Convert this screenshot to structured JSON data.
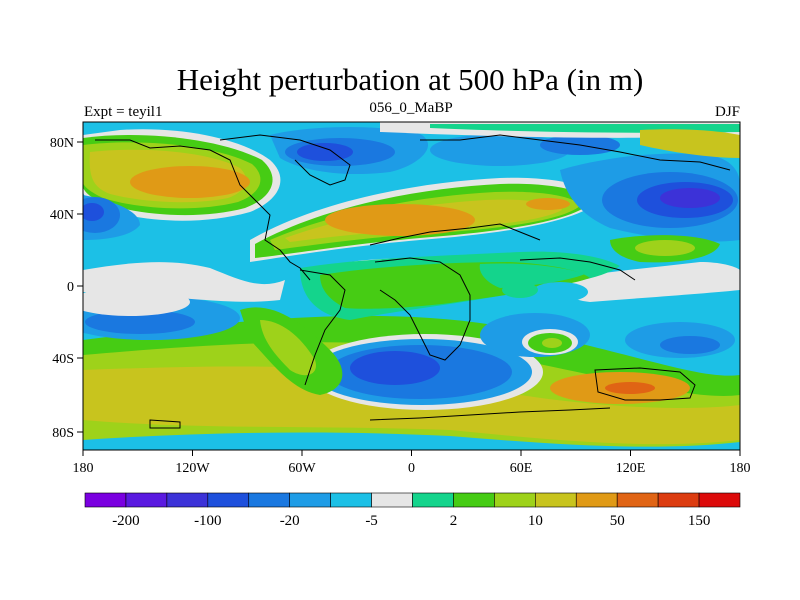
{
  "title": "Height perturbation at 500 hPa (in m)",
  "left_label": "Expt = teyil1",
  "center_label": "056_0_MaBP",
  "right_label": "DJF",
  "y_ticks": [
    "80N",
    "40N",
    "0",
    "40S",
    "80S"
  ],
  "x_ticks": [
    "180",
    "120W",
    "60W",
    "0",
    "60E",
    "120E",
    "180"
  ],
  "colorbar": {
    "colors": [
      "#7a00e0",
      "#5a1ae0",
      "#3c32d8",
      "#1e50dc",
      "#1a78e0",
      "#1e9ce6",
      "#1cc0e6",
      "#e6e6e6",
      "#14d48c",
      "#46cc14",
      "#9ed21a",
      "#c8c41e",
      "#e09a16",
      "#e06414",
      "#dc3c10",
      "#dc0a0a"
    ],
    "labels": [
      "-200",
      "-100",
      "-20",
      "-5",
      "2",
      "10",
      "50",
      "150"
    ]
  }
}
